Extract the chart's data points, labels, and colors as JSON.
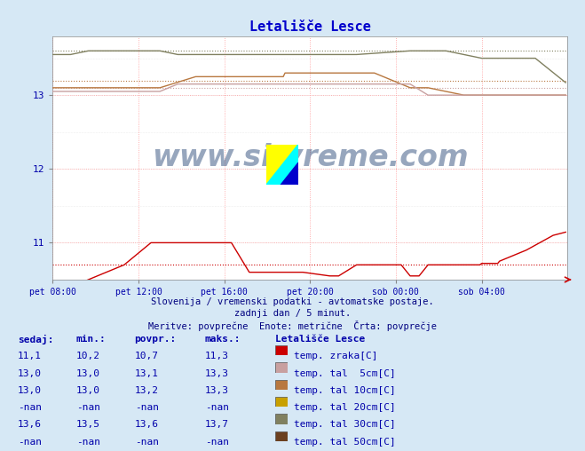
{
  "title": "Letališče Lesce",
  "title_color": "#0000cc",
  "bg_color": "#d6e8f5",
  "plot_bg_color": "#ffffff",
  "x_label_color": "#0000aa",
  "y_label_color": "#0000aa",
  "watermark_text": "www.si-vreme.com",
  "watermark_color": "#1a3a6e",
  "subtitle1": "Slovenija / vremenski podatki - avtomatske postaje.",
  "subtitle2": "zadnji dan / 5 minut.",
  "subtitle3": "Meritve: povprečne  Enote: metrične  Črta: povprečje",
  "subtitle_color": "#000080",
  "x_ticks": [
    "pet 08:00",
    "pet 12:00",
    "pet 16:00",
    "pet 20:00",
    "sob 00:00",
    "sob 04:00"
  ],
  "ylim": [
    10.5,
    13.8
  ],
  "xlim": [
    0,
    288
  ],
  "legend_title": "Letališče Lesce",
  "legend_items": [
    {
      "label": "temp. zraka[C]",
      "color": "#cc0000"
    },
    {
      "label": "temp. tal  5cm[C]",
      "color": "#c8a0a0"
    },
    {
      "label": "temp. tal 10cm[C]",
      "color": "#b87840"
    },
    {
      "label": "temp. tal 20cm[C]",
      "color": "#c8a000"
    },
    {
      "label": "temp. tal 30cm[C]",
      "color": "#808060"
    },
    {
      "label": "temp. tal 50cm[C]",
      "color": "#6b4020"
    }
  ],
  "table_headers": [
    "sedaj:",
    "min.:",
    "povpr.:",
    "maks.:"
  ],
  "table_data": [
    [
      "11,1",
      "10,2",
      "10,7",
      "11,3"
    ],
    [
      "13,0",
      "13,0",
      "13,1",
      "13,3"
    ],
    [
      "13,0",
      "13,0",
      "13,2",
      "13,3"
    ],
    [
      "-nan",
      "-nan",
      "-nan",
      "-nan"
    ],
    [
      "13,6",
      "13,5",
      "13,6",
      "13,7"
    ],
    [
      "-nan",
      "-nan",
      "-nan",
      "-nan"
    ]
  ],
  "n_points": 288,
  "avg_air_temp": 10.7,
  "avg_soil5": 13.1,
  "avg_soil10": 13.2,
  "avg_soil30": 13.6
}
